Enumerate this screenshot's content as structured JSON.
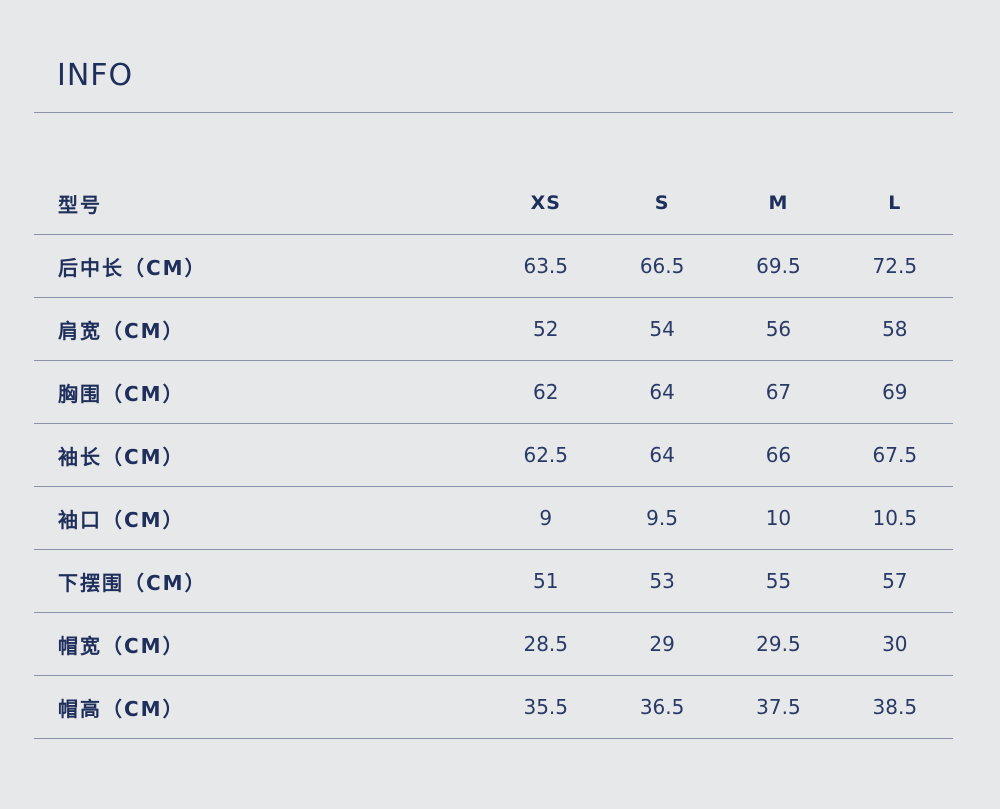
{
  "title": "INFO",
  "table": {
    "header": {
      "label": "型号",
      "sizes": [
        "XS",
        "S",
        "M",
        "L"
      ]
    },
    "rows": [
      {
        "label": "后中长（CM）",
        "values": [
          "63.5",
          "66.5",
          "69.5",
          "72.5"
        ]
      },
      {
        "label": "肩宽（CM）",
        "values": [
          "52",
          "54",
          "56",
          "58"
        ]
      },
      {
        "label": "胸围（CM）",
        "values": [
          "62",
          "64",
          "67",
          "69"
        ]
      },
      {
        "label": "袖长（CM）",
        "values": [
          "62.5",
          "64",
          "66",
          "67.5"
        ]
      },
      {
        "label": "袖口（CM）",
        "values": [
          "9",
          "9.5",
          "10",
          "10.5"
        ]
      },
      {
        "label": "下摆围（CM）",
        "values": [
          "51",
          "53",
          "55",
          "57"
        ]
      },
      {
        "label": "帽宽（CM）",
        "values": [
          "28.5",
          "29",
          "29.5",
          "30"
        ]
      },
      {
        "label": "帽高（CM）",
        "values": [
          "35.5",
          "36.5",
          "37.5",
          "38.5"
        ]
      }
    ]
  },
  "colors": {
    "background": "#e7e8ea",
    "text": "#1f2f5b",
    "rule": "#8a93aa"
  }
}
